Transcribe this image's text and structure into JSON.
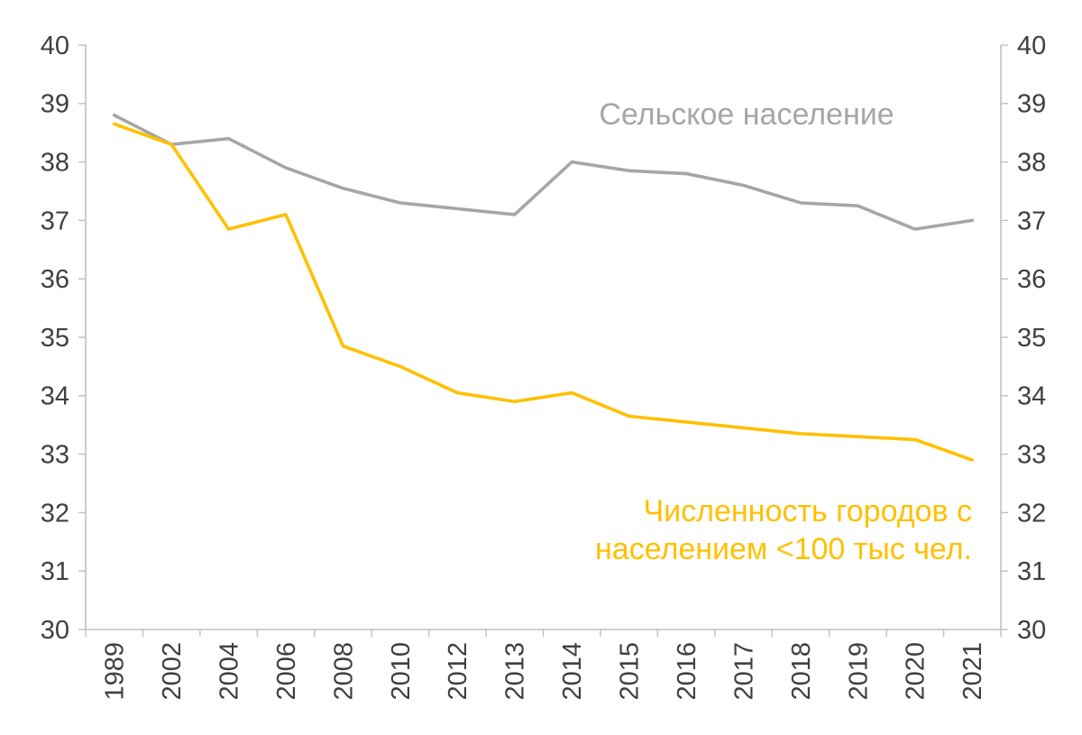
{
  "page": {
    "background": "#FFFFFF"
  },
  "chart_data": {
    "type": "line",
    "title": "",
    "xlabel": "",
    "ylabel": "",
    "categories": [
      "1989",
      "2002",
      "2004",
      "2006",
      "2008",
      "2010",
      "2012",
      "2013",
      "2014",
      "2015",
      "2016",
      "2017",
      "2018",
      "2019",
      "2020",
      "2021"
    ],
    "series": [
      {
        "id": "rural-population",
        "name": "Сельское население",
        "color": "#A6A6A6",
        "values": [
          38.8,
          38.3,
          38.4,
          37.9,
          37.55,
          37.3,
          37.2,
          37.1,
          38.0,
          37.85,
          37.8,
          37.6,
          37.3,
          37.25,
          36.85,
          37.0
        ]
      },
      {
        "id": "small-cities",
        "name": "Численность городов с населением <100 тыс чел.",
        "color": "#FFC000",
        "values": [
          38.65,
          38.3,
          36.85,
          37.1,
          34.85,
          34.5,
          34.05,
          33.9,
          34.05,
          33.65,
          33.55,
          33.45,
          33.35,
          33.3,
          33.25,
          32.9
        ]
      }
    ],
    "ylim": [
      30,
      40
    ],
    "yticks": [
      30,
      31,
      32,
      33,
      34,
      35,
      36,
      37,
      38,
      39,
      40
    ],
    "y_axis_sides": [
      "left",
      "right"
    ],
    "grid": false,
    "legend_position": "none",
    "axis_color": "#BFBFBF",
    "tick_label_color": "#404040",
    "annotations": [
      {
        "lines": [
          "Сельское население"
        ],
        "color": "#A6A6A6"
      },
      {
        "lines": [
          "Численность городов с",
          "населением <100 тыс чел."
        ],
        "color": "#FFC000"
      }
    ]
  }
}
